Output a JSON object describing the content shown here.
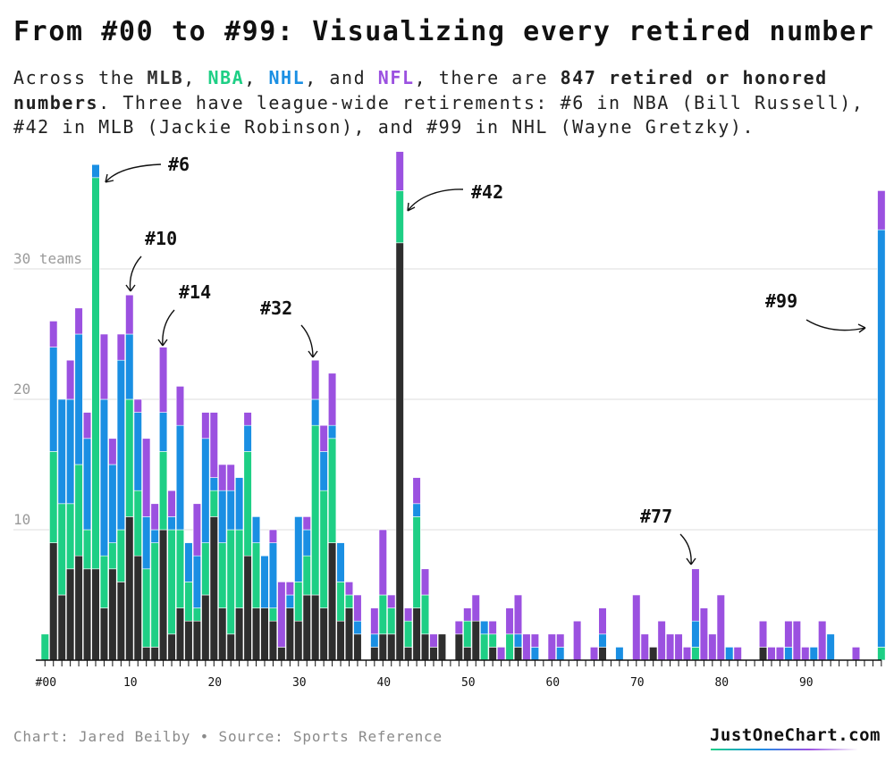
{
  "title": "From #00 to #99: Visualizing every retired number",
  "subtitle": {
    "segments": [
      {
        "text": "Across the ",
        "style": "plain"
      },
      {
        "text": "MLB",
        "style": "mlb"
      },
      {
        "text": ", ",
        "style": "plain"
      },
      {
        "text": "NBA",
        "style": "nba"
      },
      {
        "text": ", ",
        "style": "plain"
      },
      {
        "text": "NHL",
        "style": "nhl"
      },
      {
        "text": ", and ",
        "style": "plain"
      },
      {
        "text": "NFL",
        "style": "nfl"
      },
      {
        "text": ", there are ",
        "style": "plain"
      },
      {
        "text": "847 retired or honored numbers",
        "style": "bold"
      },
      {
        "text": ". Three have league-wide retirements: #6 in NBA (Bill Russell), #42 in MLB (Jackie Robinson), and #99 in NHL (Wayne Gretzky).",
        "style": "plain"
      }
    ]
  },
  "footer": {
    "credit": "Chart: Jared Beilby • Source: Sports Reference",
    "brand": "JustOneChart.com"
  },
  "colors": {
    "MLB": "#2e2e2e",
    "NBA": "#1ecf85",
    "NHL": "#1a8fe3",
    "NFL": "#9b51e0",
    "grid": "#dedede"
  },
  "chart_data": {
    "type": "bar",
    "stacked": true,
    "x_start": 0,
    "x_end": 99,
    "x_tick_labels": [
      {
        "x": 0,
        "label": "#00"
      },
      {
        "x": 10,
        "label": "10"
      },
      {
        "x": 20,
        "label": "20"
      },
      {
        "x": 30,
        "label": "30"
      },
      {
        "x": 40,
        "label": "40"
      },
      {
        "x": 50,
        "label": "50"
      },
      {
        "x": 60,
        "label": "60"
      },
      {
        "x": 70,
        "label": "70"
      },
      {
        "x": 80,
        "label": "80"
      },
      {
        "x": 90,
        "label": "90"
      }
    ],
    "y_ticks": [
      {
        "y": 10,
        "label": "10"
      },
      {
        "y": 20,
        "label": "20"
      },
      {
        "y": 30,
        "label": "30 teams"
      }
    ],
    "ylim": [
      0,
      39
    ],
    "grid": true,
    "series": [
      {
        "name": "MLB",
        "values": [
          0,
          9,
          5,
          7,
          8,
          7,
          7,
          4,
          7,
          6,
          11,
          8,
          1,
          1,
          10,
          2,
          4,
          3,
          3,
          5,
          11,
          4,
          2,
          4,
          8,
          4,
          4,
          3,
          1,
          4,
          3,
          5,
          5,
          4,
          9,
          3,
          4,
          2,
          0,
          1,
          2,
          2,
          32,
          1,
          4,
          2,
          1,
          2,
          0,
          2,
          1,
          3,
          0,
          1,
          0,
          0,
          1,
          0,
          0,
          0,
          0,
          0,
          0,
          0,
          0,
          0,
          1,
          0,
          0,
          0,
          0,
          0,
          1,
          0,
          0,
          0,
          0,
          0,
          0,
          0,
          0,
          0,
          0,
          0,
          0,
          1,
          0,
          0,
          0,
          0,
          0,
          0,
          0,
          0,
          0,
          0,
          0,
          0,
          0,
          0
        ]
      },
      {
        "name": "NBA",
        "values": [
          2,
          7,
          7,
          5,
          7,
          3,
          30,
          4,
          2,
          4,
          9,
          5,
          6,
          8,
          6,
          8,
          6,
          3,
          1,
          4,
          2,
          5,
          8,
          6,
          8,
          5,
          0,
          1,
          0,
          0,
          3,
          3,
          13,
          9,
          8,
          3,
          1,
          0,
          0,
          0,
          3,
          2,
          4,
          2,
          7,
          3,
          0,
          0,
          0,
          0,
          2,
          0,
          2,
          1,
          0,
          2,
          0,
          0,
          0,
          0,
          0,
          0,
          0,
          0,
          0,
          0,
          0,
          0,
          0,
          0,
          0,
          0,
          0,
          0,
          0,
          0,
          0,
          1,
          0,
          0,
          0,
          0,
          0,
          0,
          0,
          0,
          0,
          0,
          0,
          0,
          0,
          0,
          0,
          0,
          0,
          0,
          0,
          0,
          0,
          1
        ]
      },
      {
        "name": "NHL",
        "values": [
          0,
          8,
          8,
          8,
          10,
          7,
          1,
          12,
          6,
          13,
          5,
          6,
          4,
          1,
          3,
          1,
          8,
          3,
          4,
          8,
          1,
          4,
          3,
          4,
          2,
          2,
          4,
          5,
          0,
          1,
          5,
          2,
          2,
          3,
          1,
          3,
          0,
          1,
          0,
          1,
          0,
          0,
          0,
          0,
          1,
          0,
          0,
          0,
          0,
          0,
          0,
          0,
          1,
          0,
          0,
          0,
          1,
          0,
          1,
          0,
          0,
          1,
          0,
          0,
          0,
          0,
          1,
          0,
          1,
          0,
          0,
          0,
          0,
          0,
          0,
          0,
          0,
          2,
          0,
          0,
          0,
          1,
          0,
          0,
          0,
          0,
          0,
          0,
          1,
          0,
          0,
          1,
          0,
          2,
          0,
          0,
          0,
          0,
          0,
          32
        ]
      },
      {
        "name": "NFL",
        "values": [
          0,
          2,
          0,
          3,
          2,
          2,
          0,
          5,
          2,
          2,
          3,
          1,
          6,
          2,
          5,
          2,
          3,
          0,
          4,
          2,
          5,
          2,
          2,
          0,
          1,
          0,
          0,
          1,
          5,
          1,
          0,
          1,
          3,
          2,
          4,
          0,
          1,
          2,
          0,
          2,
          5,
          1,
          3,
          1,
          2,
          2,
          1,
          0,
          0,
          1,
          1,
          2,
          0,
          1,
          1,
          2,
          3,
          2,
          1,
          0,
          2,
          1,
          0,
          3,
          0,
          1,
          2,
          0,
          0,
          0,
          5,
          2,
          0,
          3,
          2,
          2,
          1,
          4,
          4,
          2,
          5,
          0,
          1,
          0,
          0,
          2,
          1,
          1,
          2,
          3,
          1,
          0,
          3,
          0,
          0,
          0,
          1,
          0,
          0,
          3
        ]
      }
    ],
    "annotations": [
      {
        "label": "#6",
        "x": 6
      },
      {
        "label": "#10",
        "x": 10
      },
      {
        "label": "#14",
        "x": 14
      },
      {
        "label": "#32",
        "x": 32
      },
      {
        "label": "#42",
        "x": 42
      },
      {
        "label": "#77",
        "x": 77
      },
      {
        "label": "#99",
        "x": 99
      }
    ]
  }
}
